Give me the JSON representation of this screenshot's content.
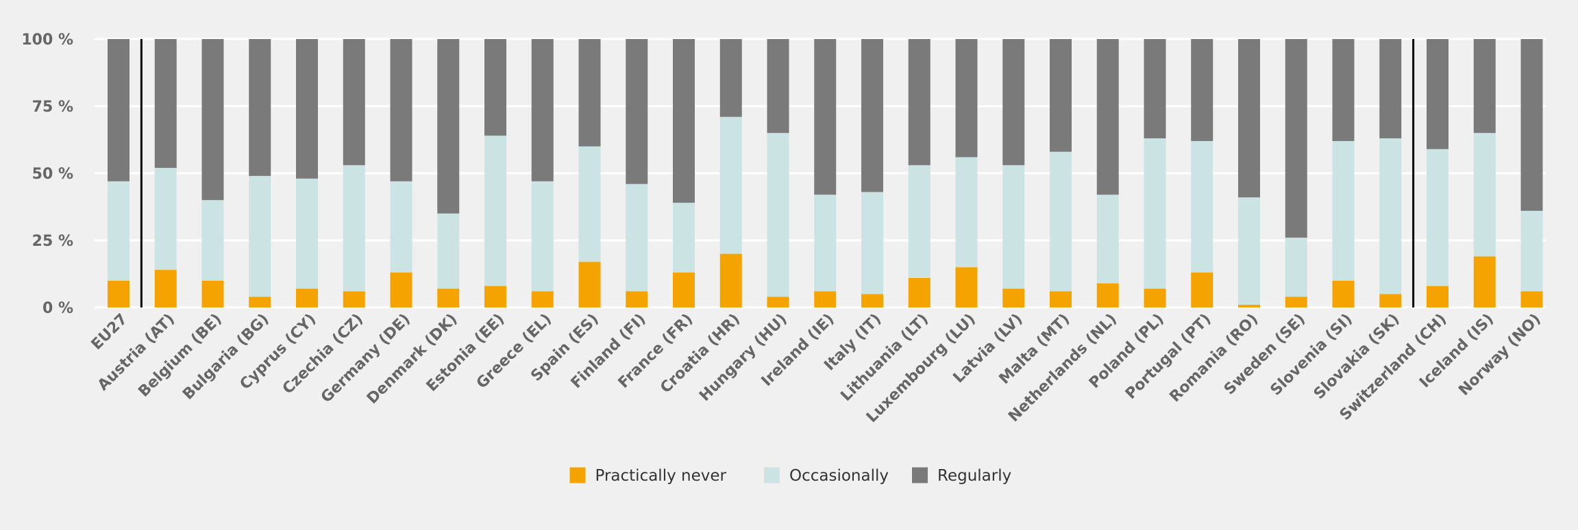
{
  "chart_data": {
    "type": "bar",
    "stacked": true,
    "percent": true,
    "title": "",
    "xlabel": "",
    "ylabel": "",
    "ylim": [
      0,
      100
    ],
    "yticks": [
      "0 %",
      "25 %",
      "50 %",
      "75 %",
      "100 %"
    ],
    "grid": true,
    "legend_position": "bottom-center",
    "separators_after": [
      "EU27",
      "Slovakia (SK)"
    ],
    "categories": [
      "EU27",
      "Austria (AT)",
      "Belgium (BE)",
      "Bulgaria (BG)",
      "Cyprus (CY)",
      "Czechia (CZ)",
      "Germany (DE)",
      "Denmark (DK)",
      "Estonia (EE)",
      "Greece (EL)",
      "Spain (ES)",
      "Finland (FI)",
      "France (FR)",
      "Croatia (HR)",
      "Hungary (HU)",
      "Ireland (IE)",
      "Italy (IT)",
      "Lithuania (LT)",
      "Luxembourg (LU)",
      "Latvia (LV)",
      "Malta (MT)",
      "Netherlands (NL)",
      "Poland (PL)",
      "Portugal (PT)",
      "Romania (RO)",
      "Sweden (SE)",
      "Slovenia (SI)",
      "Slovakia (SK)",
      "Switzerland (CH)",
      "Iceland (IS)",
      "Norway (NO)"
    ],
    "series": [
      {
        "name": "Practically never",
        "color": "#f5a300",
        "values": [
          10,
          14,
          10,
          4,
          7,
          6,
          13,
          7,
          8,
          6,
          17,
          6,
          13,
          20,
          4,
          6,
          5,
          11,
          15,
          7,
          6,
          9,
          7,
          13,
          1,
          4,
          10,
          5,
          8,
          19,
          6
        ]
      },
      {
        "name": "Occasionally",
        "color": "#cce3e3",
        "values": [
          37,
          38,
          30,
          45,
          41,
          47,
          34,
          28,
          56,
          41,
          43,
          40,
          26,
          51,
          61,
          36,
          38,
          42,
          41,
          46,
          52,
          33,
          56,
          49,
          40,
          22,
          52,
          58,
          51,
          46,
          30
        ]
      },
      {
        "name": "Regularly",
        "color": "#7a7a7b",
        "values": [
          53,
          48,
          60,
          51,
          52,
          47,
          53,
          65,
          36,
          53,
          40,
          54,
          61,
          29,
          35,
          58,
          57,
          47,
          44,
          47,
          42,
          58,
          37,
          38,
          59,
          74,
          38,
          37,
          41,
          35,
          64
        ]
      }
    ]
  }
}
